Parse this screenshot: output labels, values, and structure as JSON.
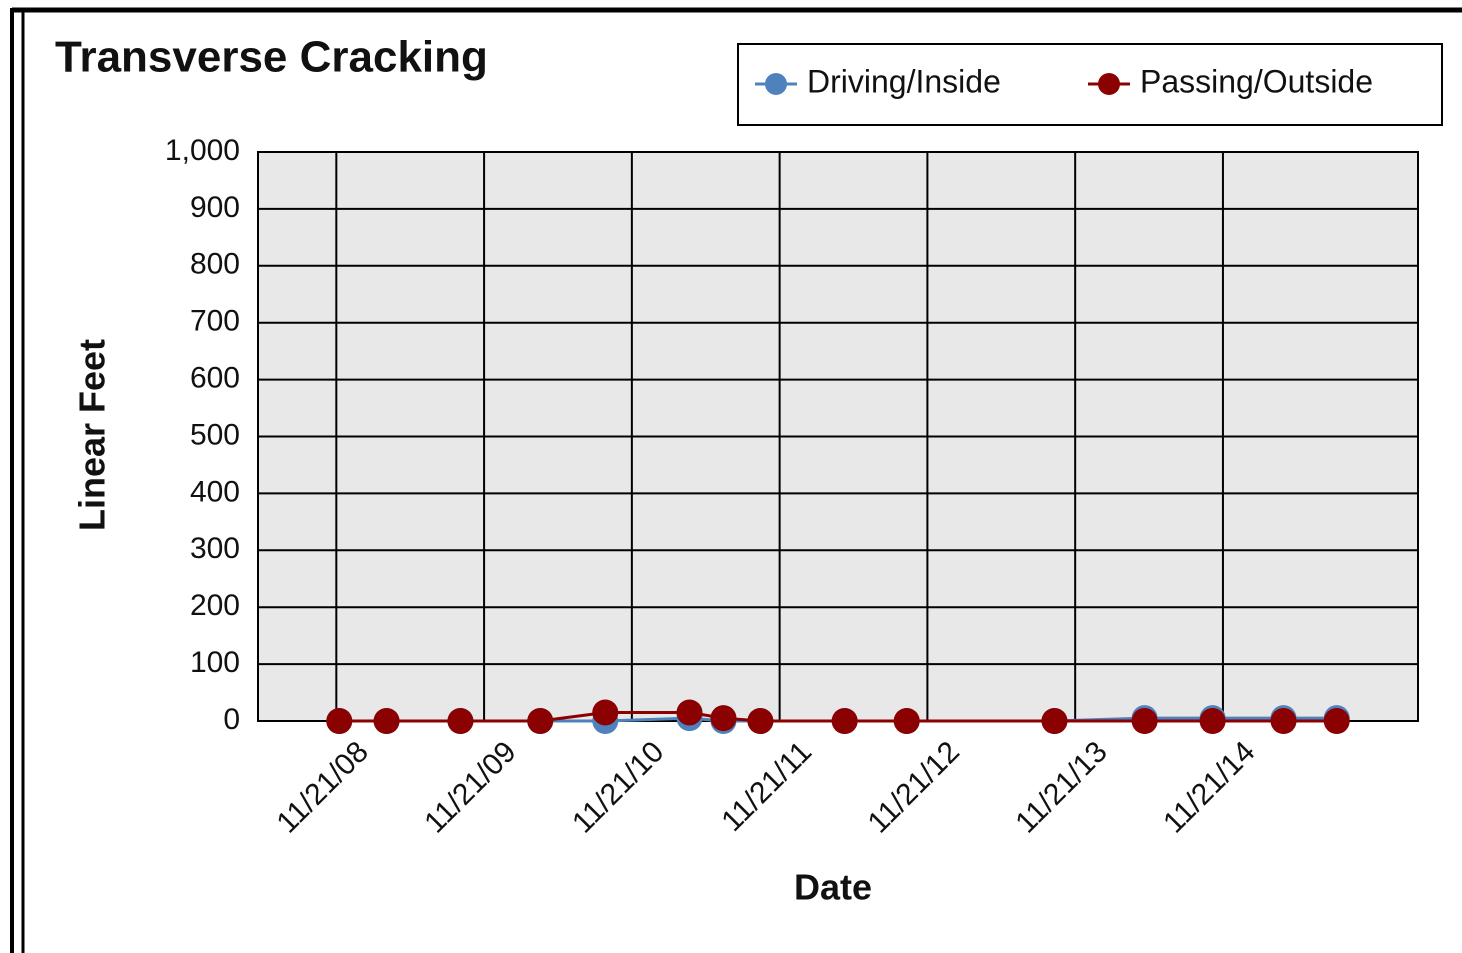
{
  "chart_data": {
    "type": "line",
    "title": "Transverse Cracking",
    "x_label": "Date",
    "y_label": "Linear Feet",
    "x": [
      2008.02,
      2008.34,
      2008.84,
      2009.38,
      2009.82,
      2010.39,
      2010.62,
      2010.87,
      2011.44,
      2011.86,
      2012.86,
      2013.47,
      2013.93,
      2014.41,
      2014.77
    ],
    "series": [
      {
        "name": "Driving/Inside",
        "color": "#4f81bd",
        "values": [
          0,
          0,
          0,
          0,
          0,
          5,
          0,
          0,
          0,
          0,
          0,
          5,
          5,
          5,
          5
        ]
      },
      {
        "name": "Passing/Outside",
        "color": "#8b0000",
        "values": [
          0,
          0,
          0,
          0,
          15,
          15,
          5,
          0,
          0,
          0,
          0,
          0,
          0,
          0,
          0
        ]
      }
    ],
    "xlim": [
      2007.47,
      2015.32
    ],
    "xticks": [
      {
        "value": 2008,
        "label": "11/21/08"
      },
      {
        "value": 2009,
        "label": "11/21/09"
      },
      {
        "value": 2010,
        "label": "11/21/10"
      },
      {
        "value": 2011,
        "label": "11/21/11"
      },
      {
        "value": 2012,
        "label": "11/21/12"
      },
      {
        "value": 2013,
        "label": "11/21/13"
      },
      {
        "value": 2014,
        "label": "11/21/14"
      }
    ],
    "ylim": [
      0,
      1000
    ],
    "yticks": [
      0,
      100,
      200,
      300,
      400,
      500,
      600,
      700,
      800,
      900,
      {
        "value": 1000,
        "label": "1,000"
      }
    ],
    "grid": true,
    "legend": "top-right"
  }
}
